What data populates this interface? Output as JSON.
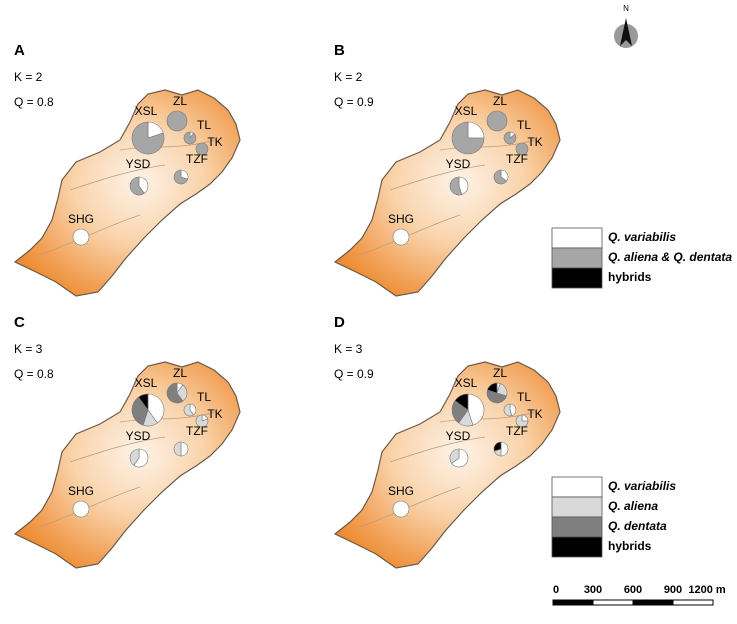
{
  "north": "N",
  "panels": [
    {
      "letter": "A",
      "k": "K = 2",
      "q": "Q = 0.8",
      "sites": [
        {
          "label": "XSL",
          "values": [
            20,
            80,
            0
          ]
        },
        {
          "label": "ZL",
          "values": [
            0,
            100,
            0
          ]
        },
        {
          "label": "TL",
          "values": [
            10,
            90,
            0
          ]
        },
        {
          "label": "TK",
          "values": [
            0,
            100,
            0
          ]
        },
        {
          "label": "YSD",
          "values": [
            40,
            60,
            0
          ]
        },
        {
          "label": "TZF",
          "values": [
            30,
            70,
            0
          ]
        },
        {
          "label": "SHG",
          "values": [
            100,
            0,
            0
          ]
        }
      ]
    },
    {
      "letter": "B",
      "k": "K = 2",
      "q": "Q = 0.9",
      "sites": [
        {
          "label": "XSL",
          "values": [
            25,
            75,
            0
          ]
        },
        {
          "label": "ZL",
          "values": [
            0,
            100,
            0
          ]
        },
        {
          "label": "TL",
          "values": [
            15,
            85,
            0
          ]
        },
        {
          "label": "TK",
          "values": [
            0,
            100,
            0
          ]
        },
        {
          "label": "YSD",
          "values": [
            45,
            55,
            0
          ]
        },
        {
          "label": "TZF",
          "values": [
            35,
            65,
            0
          ]
        },
        {
          "label": "SHG",
          "values": [
            100,
            0,
            0
          ]
        }
      ]
    },
    {
      "letter": "C",
      "k": "K = 3",
      "q": "Q = 0.8",
      "sites": [
        {
          "label": "XSL",
          "values": [
            40,
            15,
            35,
            10
          ]
        },
        {
          "label": "ZL",
          "values": [
            10,
            30,
            60,
            0
          ]
        },
        {
          "label": "TL",
          "values": [
            40,
            60,
            0,
            0
          ]
        },
        {
          "label": "TK",
          "values": [
            20,
            80,
            0,
            0
          ]
        },
        {
          "label": "YSD",
          "values": [
            60,
            40,
            0,
            0
          ]
        },
        {
          "label": "TZF",
          "values": [
            50,
            50,
            0,
            0
          ]
        },
        {
          "label": "SHG",
          "values": [
            100,
            0,
            0,
            0
          ]
        }
      ]
    },
    {
      "letter": "D",
      "k": "K = 3",
      "q": "Q = 0.9",
      "sites": [
        {
          "label": "XSL",
          "values": [
            45,
            15,
            25,
            15
          ]
        },
        {
          "label": "ZL",
          "values": [
            5,
            25,
            50,
            20
          ]
        },
        {
          "label": "TL",
          "values": [
            45,
            55,
            0,
            0
          ]
        },
        {
          "label": "TK",
          "values": [
            25,
            75,
            0,
            0
          ]
        },
        {
          "label": "YSD",
          "values": [
            65,
            35,
            0,
            0
          ]
        },
        {
          "label": "TZF",
          "values": [
            50,
            20,
            0,
            30
          ]
        },
        {
          "label": "SHG",
          "values": [
            100,
            0,
            0,
            0
          ]
        }
      ]
    }
  ],
  "legends": [
    {
      "entries": [
        "Q. variabilis",
        "Q. aliena & Q. dentata",
        "hybrids"
      ],
      "colors": [
        "#ffffff",
        "#a6a6a6",
        "#000000"
      ]
    },
    {
      "entries": [
        "Q. variabilis",
        "Q. aliena",
        "Q. dentata",
        "hybrids"
      ],
      "colors": [
        "#ffffff",
        "#d9d9d9",
        "#7f7f7f",
        "#000000"
      ]
    }
  ],
  "scale_bar": {
    "labels": [
      "0",
      "300",
      "600",
      "900",
      "1200 m"
    ]
  }
}
